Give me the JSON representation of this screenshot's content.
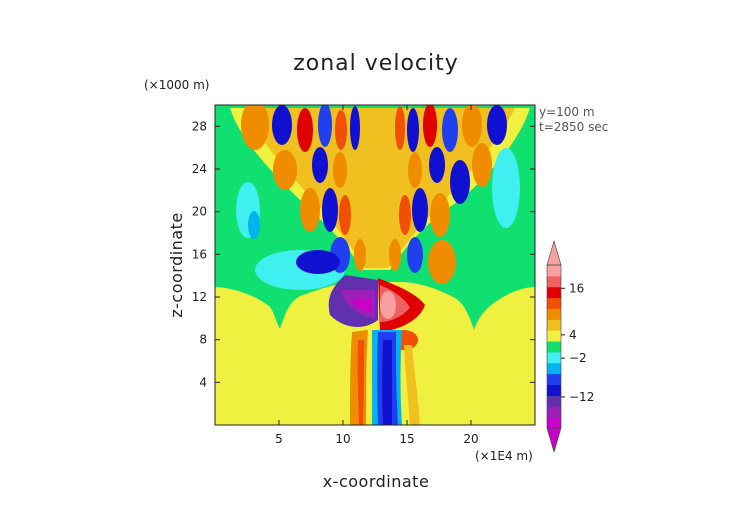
{
  "chart_data": {
    "type": "heatmap",
    "title": "zonal velocity",
    "xlabel": "x-coordinate",
    "ylabel": "z-coordinate",
    "x_unit": "(×1E4 m)",
    "y_unit": "(×1000 m)",
    "annotations": [
      "y=100 m",
      "t=2850 sec"
    ],
    "xlim": [
      0,
      25
    ],
    "ylim": [
      0,
      30
    ],
    "xticks": [
      5,
      10,
      15,
      20
    ],
    "yticks": [
      4,
      8,
      12,
      16,
      20,
      24,
      28
    ],
    "colorbar": {
      "tick_values": [
        16,
        4,
        -2,
        -12
      ],
      "tick_labels": [
        "16",
        "4",
        "−2",
        "−12"
      ],
      "extend": "both",
      "colors": [
        "#c800c8",
        "#9a20b8",
        "#6030b0",
        "#1010d0",
        "#2040f0",
        "#00b4f0",
        "#40f0f0",
        "#10e070",
        "#f0f040",
        "#f0c020",
        "#f08c00",
        "#f05000",
        "#e00000",
        "#f06060",
        "#f8a0a0"
      ]
    },
    "background_value": "near zero (green)"
  }
}
